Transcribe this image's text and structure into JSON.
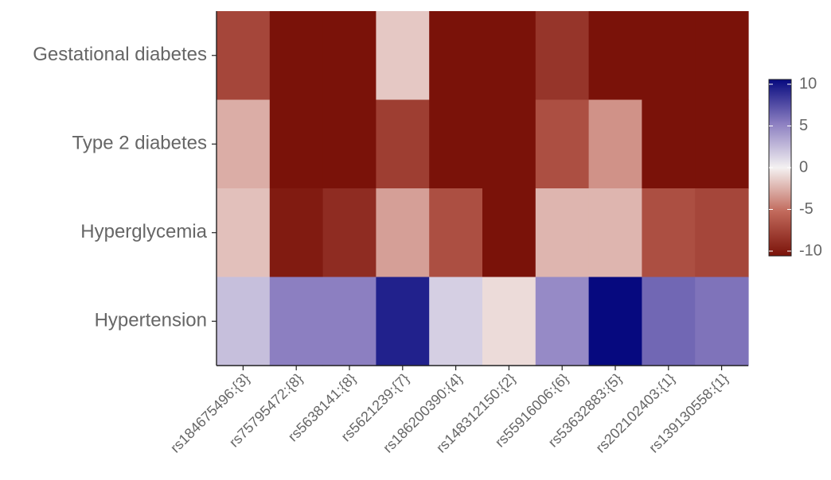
{
  "chart_data": {
    "type": "heatmap",
    "title": "",
    "xlabel": "",
    "ylabel": "",
    "rows": [
      "Gestational diabetes",
      "Type 2 diabetes",
      "Hyperglycemia",
      "Hypertension"
    ],
    "columns": [
      "rs184675496:{3}",
      "rs75795472:{8}",
      "rs5638141:{8}",
      "rs5621239:{7}",
      "rs186200390:{4}",
      "rs148312150:{2}",
      "rs55916006:{6}",
      "rs53632883:{5}",
      "rs202102403:{1}",
      "rs139130558:{1}"
    ],
    "values": [
      [
        -7,
        -10,
        -10,
        -1.5,
        -10,
        -10,
        -8,
        -10,
        -10,
        -10
      ],
      [
        -2.5,
        -10,
        -10,
        -7.5,
        -10,
        -10,
        -6.5,
        -3.5,
        -10,
        -10
      ],
      [
        -1.8,
        -9.5,
        -8.5,
        -3,
        -6.5,
        -10,
        -2.2,
        -2.2,
        -6.5,
        -7
      ],
      [
        2.2,
        5,
        5,
        9,
        1.5,
        -0.8,
        4.5,
        11,
        6,
        5.5
      ]
    ],
    "colorbar": {
      "range": [
        -10,
        10
      ],
      "ticks": [
        "10",
        "5",
        "0",
        "-5",
        "-10"
      ],
      "low_color": "#7a1209",
      "mid_color": "#f4f1f1",
      "high_color": "#06097f",
      "position": "right"
    }
  }
}
